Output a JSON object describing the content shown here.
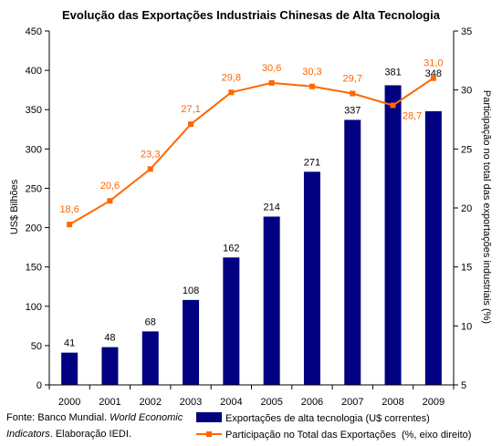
{
  "chart_data": {
    "type": "bar",
    "title": "Evolução das Exportações Industriais Chinesas de Alta Tecnologia",
    "categories": [
      "2000",
      "2001",
      "2002",
      "2003",
      "2004",
      "2005",
      "2006",
      "2007",
      "2008",
      "2009"
    ],
    "series": [
      {
        "name": "Exportações de alta tecnologia (U$ correntes)",
        "type": "bar",
        "axis": "left",
        "color": "#000080",
        "values": [
          41,
          48,
          68,
          108,
          162,
          214,
          271,
          337,
          381,
          348
        ],
        "labels": [
          "41",
          "48",
          "68",
          "108",
          "162",
          "214",
          "271",
          "337",
          "381",
          "348"
        ]
      },
      {
        "name": "Participação no Total das Exportações  (%, eixo direito)",
        "type": "line",
        "axis": "right",
        "color": "#FF6600",
        "marker": "square",
        "values": [
          18.6,
          20.6,
          23.3,
          27.1,
          29.8,
          30.6,
          30.3,
          29.7,
          28.7,
          31.0
        ],
        "labels": [
          "18,6",
          "20,6",
          "23,3",
          "27,1",
          "29,8",
          "30,6",
          "30,3",
          "29,7",
          "28,7",
          "31,0"
        ]
      }
    ],
    "ylabel": "US$ Bilhões",
    "ylim": [
      0,
      450
    ],
    "yticks": [
      "0",
      "50",
      "100",
      "150",
      "200",
      "250",
      "300",
      "350",
      "400",
      "450"
    ],
    "y2label": "Participação no total das exportações industriais (%)",
    "y2lim": [
      5,
      35
    ],
    "y2ticks": [
      "5",
      "10",
      "15",
      "20",
      "25",
      "30",
      "35"
    ],
    "grid": false,
    "legend": "bottom-right"
  },
  "source": {
    "line1": "Fonte: Banco Mundial. ",
    "line1_italic": "World Economic",
    "line2_italic": "Indicators",
    "line2": ". Elaboração IEDI."
  }
}
